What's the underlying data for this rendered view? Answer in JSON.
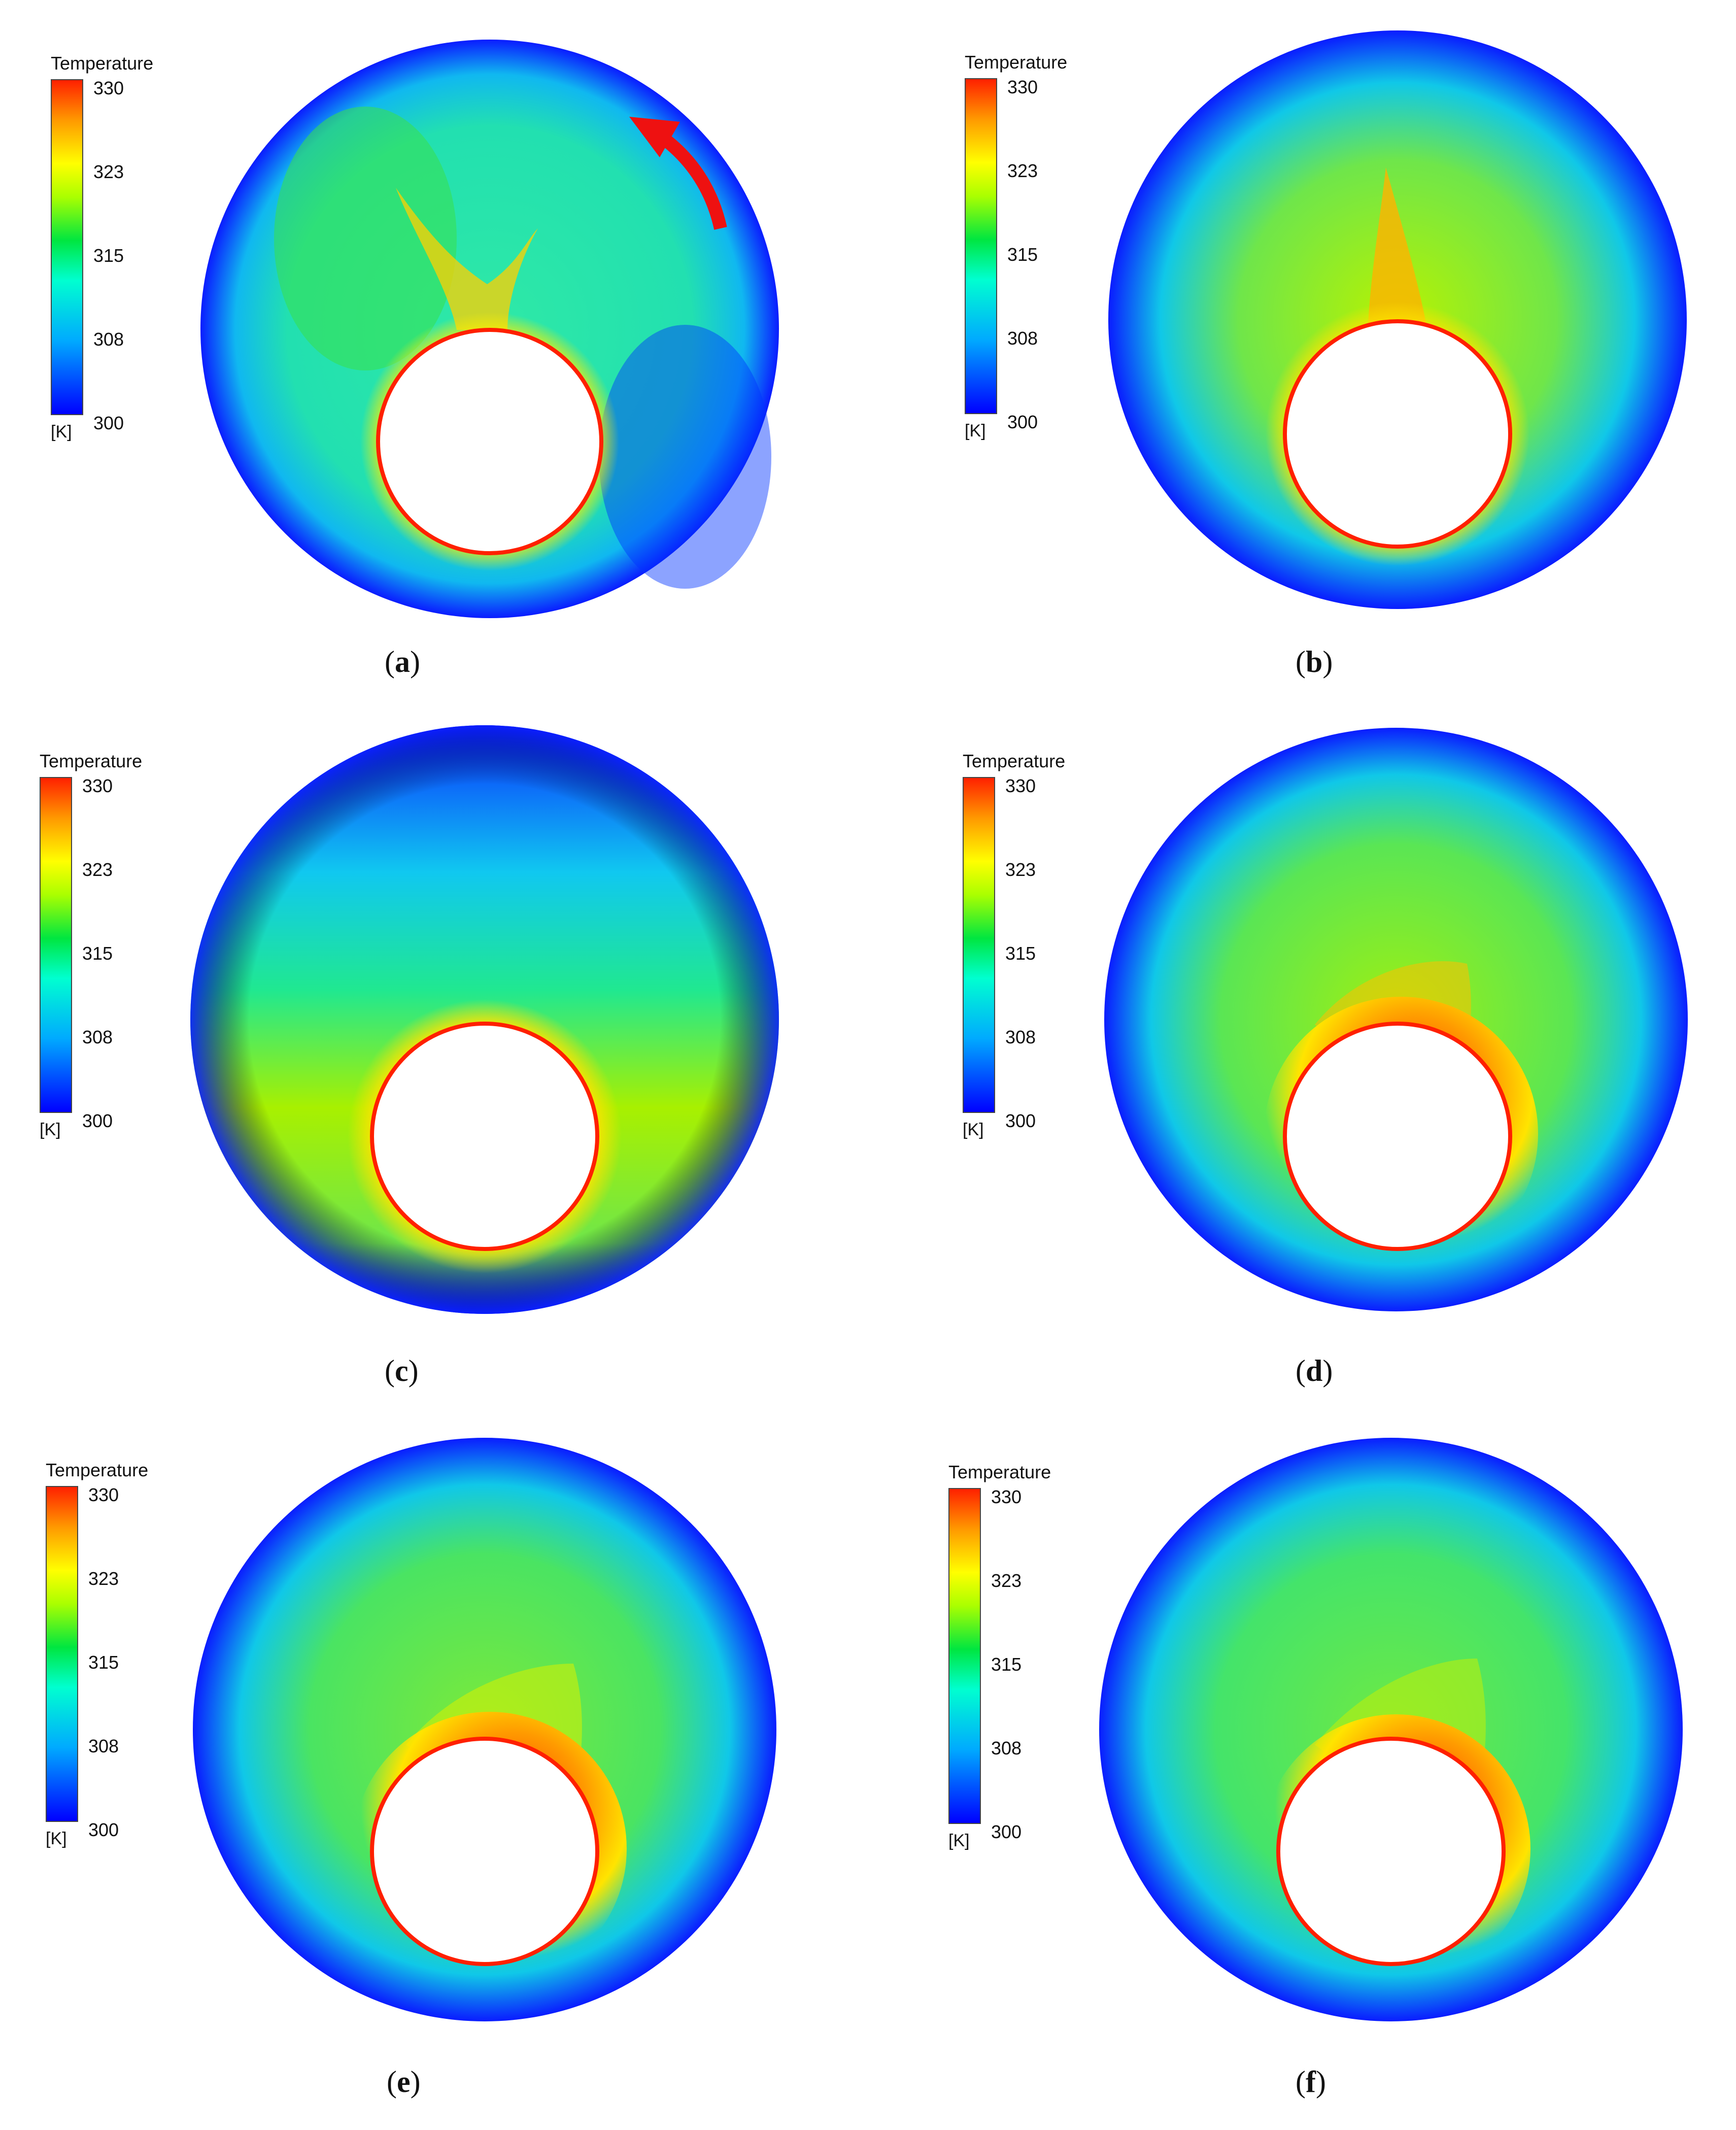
{
  "legend": {
    "title": "Temperature",
    "ticks": [
      "330",
      "323",
      "315",
      "308",
      "300"
    ],
    "unit": "[K]"
  },
  "colormap": {
    "min_color": "#0000ff",
    "cool_color": "#00aaff",
    "mid_color": "#00e640",
    "warm_color": "#ffff00",
    "max_color": "#ff2000"
  },
  "panels": [
    {
      "id": "a",
      "label": "a",
      "arrow": true
    },
    {
      "id": "b",
      "label": "b",
      "arrow": false
    },
    {
      "id": "c",
      "label": "c",
      "arrow": false
    },
    {
      "id": "d",
      "label": "d",
      "arrow": false
    },
    {
      "id": "e",
      "label": "e",
      "arrow": false
    },
    {
      "id": "f",
      "label": "f",
      "arrow": false
    }
  ],
  "annotation": {
    "arrow_color": "#ee1111"
  }
}
